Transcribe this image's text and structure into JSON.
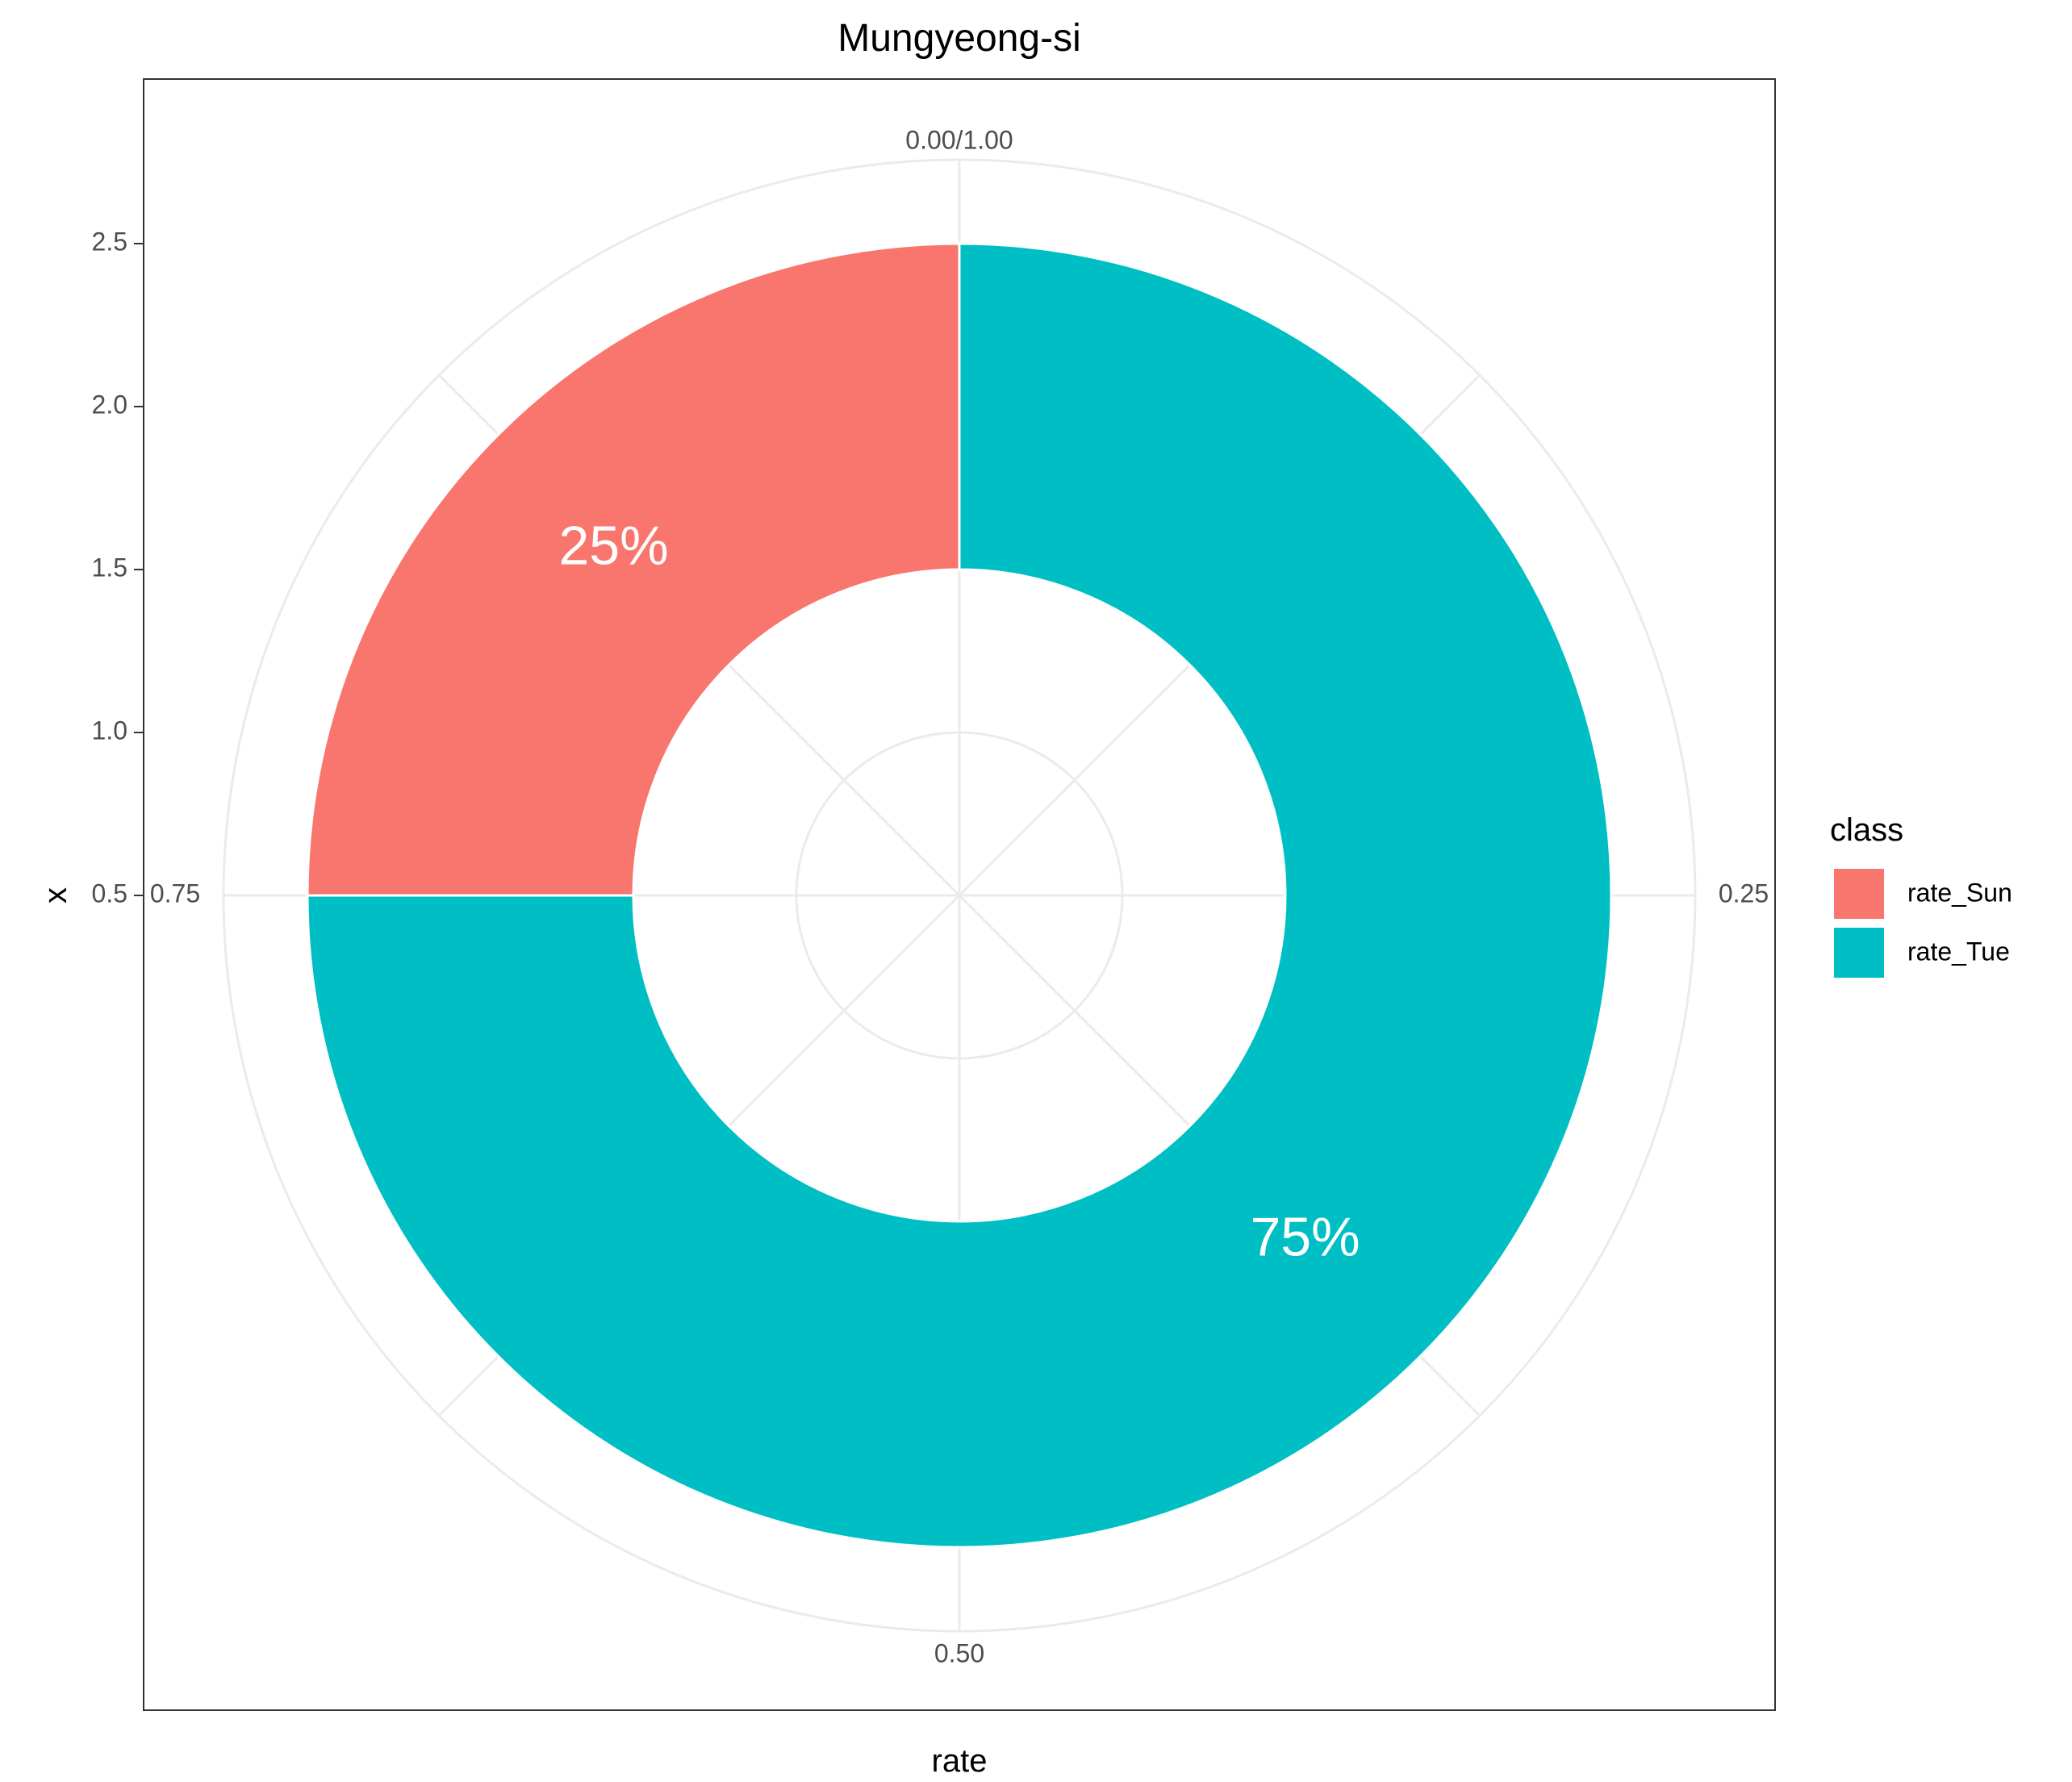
{
  "chart_data": {
    "type": "pie",
    "subtype": "donut",
    "title": "Mungyeong-si",
    "xlabel": "rate",
    "ylabel": "x",
    "categories": [
      "rate_Sun",
      "rate_Tue"
    ],
    "values": [
      0.25,
      0.75
    ],
    "slice_labels": [
      "25%",
      "75%"
    ],
    "colors": [
      "#F8766D",
      "#00BFC4"
    ],
    "legend": {
      "title": "class",
      "position": "right",
      "entries": [
        "rate_Sun",
        "rate_Tue"
      ]
    },
    "radial_axis": {
      "range": [
        0.5,
        2.5
      ],
      "ticks": [
        "0.5",
        "1.0",
        "1.5",
        "2.0",
        "2.5"
      ],
      "donut_range": [
        1.5,
        2.5
      ]
    },
    "angular_axis": {
      "ticks": [
        "0.00/1.00",
        "0.25",
        "0.50",
        "0.75"
      ]
    },
    "grid": true,
    "theme": "bw"
  }
}
